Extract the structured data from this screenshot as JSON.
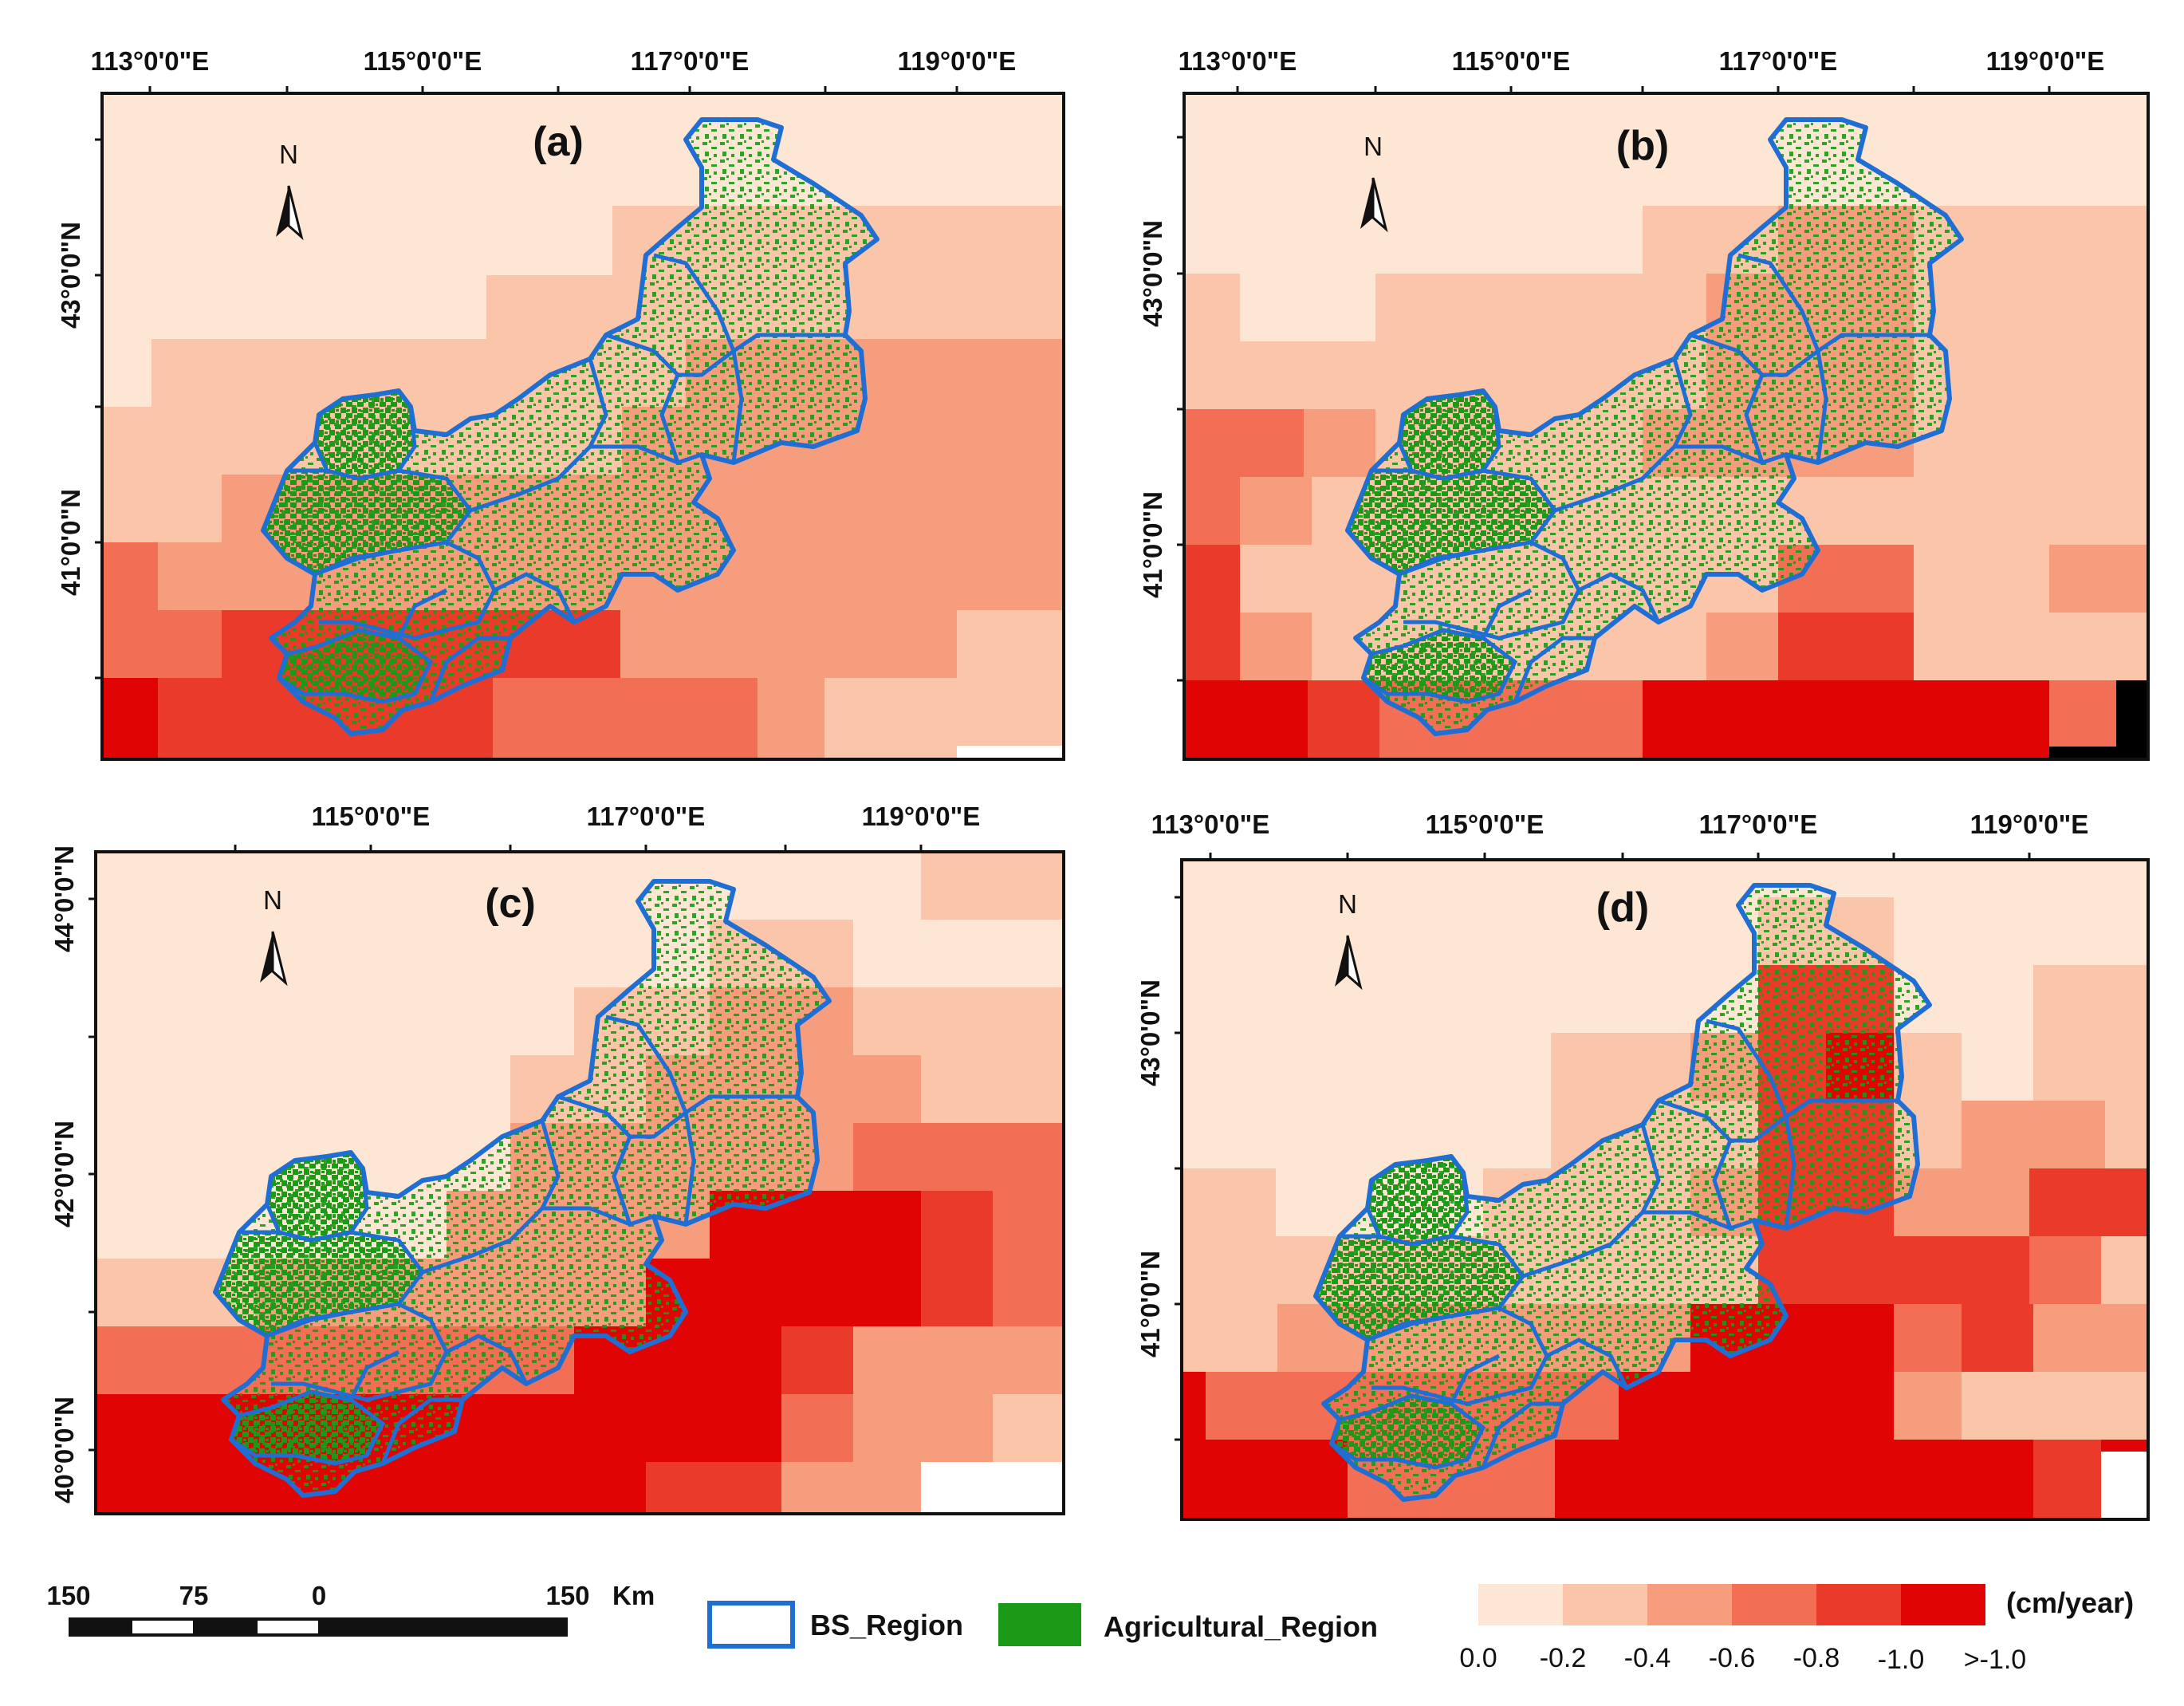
{
  "panels": [
    {
      "label": "(a)",
      "north": "N",
      "lon_ticks": [
        "113°0'0\"E",
        "115°0'0\"E",
        "117°0'0\"E",
        "119°0'0\"E"
      ],
      "lat_ticks": [
        "43°0'0\"N",
        "41°0'0\"N"
      ]
    },
    {
      "label": "(b)",
      "north": "N",
      "lon_ticks": [
        "113°0'0\"E",
        "115°0'0\"E",
        "117°0'0\"E",
        "119°0'0\"E"
      ],
      "lat_ticks": [
        "43°0'0\"N",
        "41°0'0\"N"
      ]
    },
    {
      "label": "(c)",
      "north": "N",
      "lon_ticks": [
        "115°0'0\"E",
        "117°0'0\"E",
        "119°0'0\"E"
      ],
      "lat_ticks": [
        "44°0'0\"N",
        "42°0'0\"N",
        "40°0'0\"N"
      ]
    },
    {
      "label": "(d)",
      "north": "N",
      "lon_ticks": [
        "113°0'0\"E",
        "115°0'0\"E",
        "117°0'0\"E",
        "119°0'0\"E"
      ],
      "lat_ticks": [
        "43°0'0\"N",
        "41°0'0\"N"
      ]
    }
  ],
  "scalebar": {
    "labels": [
      "150",
      "75",
      "0",
      "150"
    ],
    "unit": "Km"
  },
  "legend": {
    "bs_region": "BS_Region",
    "agricultural_region": "Agricultural_Region",
    "unit": "(cm/year)",
    "classes": [
      "0.0",
      "-0.2",
      "-0.4",
      "-0.6",
      "-0.8",
      "-1.0",
      ">-1.0"
    ]
  },
  "colors": {
    "class_colors": [
      "#fde6d3",
      "#fac5a8",
      "#f69d7e",
      "#f26e54",
      "#ea3a2a",
      "#e00404"
    ],
    "bs_outline": "#1f6ed4",
    "agricultural": "#1a9a16"
  }
}
